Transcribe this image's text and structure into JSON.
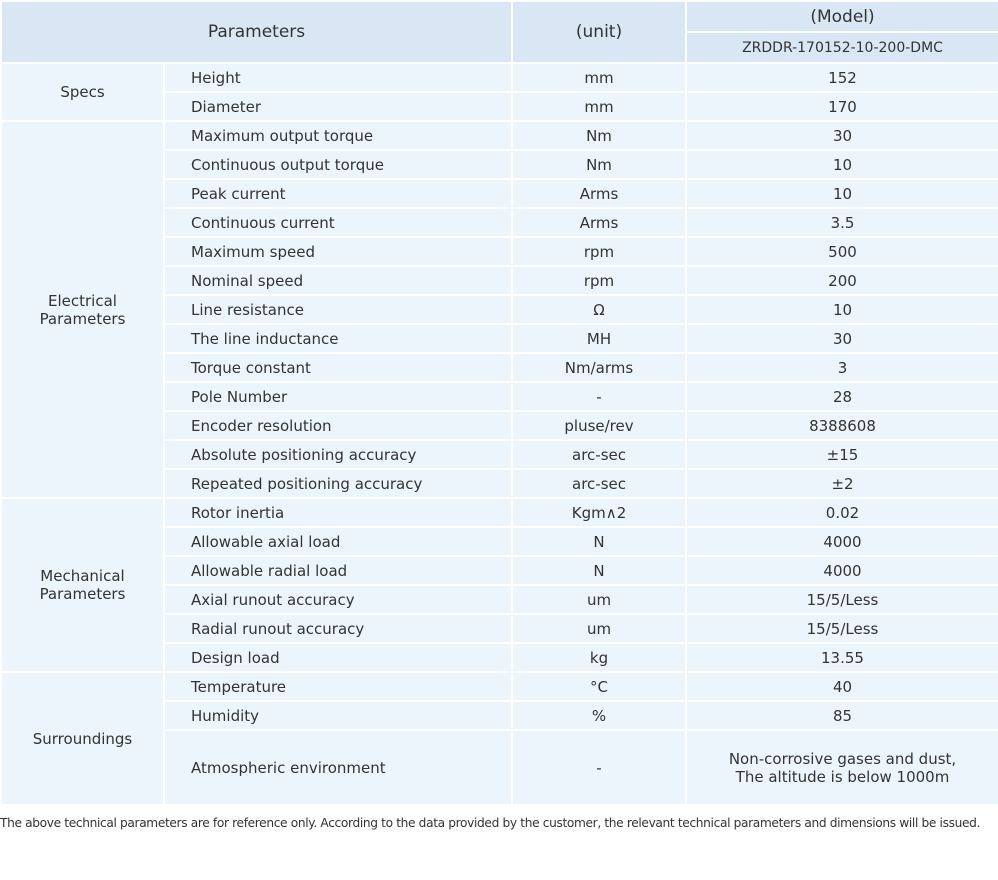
{
  "header": {
    "parameters": "Parameters",
    "unit": "(unit)",
    "model": "(Model)",
    "model_name": "ZRDDR-170152-10-200-DMC"
  },
  "groups": [
    {
      "name": "Specs",
      "rows": [
        [
          "Height",
          "mm",
          "152"
        ],
        [
          "Diameter",
          "mm",
          "170"
        ]
      ]
    },
    {
      "name": "Electrical Parameters",
      "rows": [
        [
          "Maximum output torque",
          "Nm",
          "30"
        ],
        [
          "Continuous output torque",
          "Nm",
          "10"
        ],
        [
          "Peak current",
          "Arms",
          "10"
        ],
        [
          "Continuous current",
          "Arms",
          "3.5"
        ],
        [
          "Maximum speed",
          "rpm",
          "500"
        ],
        [
          "Nominal speed",
          "rpm",
          "200"
        ],
        [
          "Line resistance",
          "Ω",
          "10"
        ],
        [
          "The line inductance",
          "MH",
          "30"
        ],
        [
          "Torque constant",
          "Nm/arms",
          "3"
        ],
        [
          "Pole Number",
          "-",
          "28"
        ],
        [
          "Encoder resolution",
          "pluse/rev",
          "8388608"
        ],
        [
          "Absolute positioning accuracy",
          "arc-sec",
          "±15"
        ],
        [
          "Repeated positioning accuracy",
          "arc-sec",
          "±2"
        ]
      ]
    },
    {
      "name": "Mechanical Parameters",
      "rows": [
        [
          "Rotor inertia",
          "Kgm∧2",
          "0.02"
        ],
        [
          "Allowable axial load",
          "N",
          "4000"
        ],
        [
          "Allowable radial load",
          "N",
          "4000"
        ],
        [
          "Axial runout accuracy",
          "um",
          "15/5/Less"
        ],
        [
          "Radial runout accuracy",
          "um",
          "15/5/Less"
        ],
        [
          "Design load",
          "kg",
          "13.55"
        ]
      ]
    },
    {
      "name": "Surroundings",
      "rows": [
        [
          "Temperature",
          "°C",
          "40"
        ],
        [
          "Humidity",
          "%",
          "85"
        ],
        [
          "Atmospheric environment",
          "-",
          [
            "Non-corrosive gases and dust,",
            "The altitude is below 1000m"
          ]
        ]
      ]
    }
  ],
  "footer": "The above technical parameters are for reference only. According to the data provided by the customer, the relevant technical parameters and dimensions will be issued."
}
